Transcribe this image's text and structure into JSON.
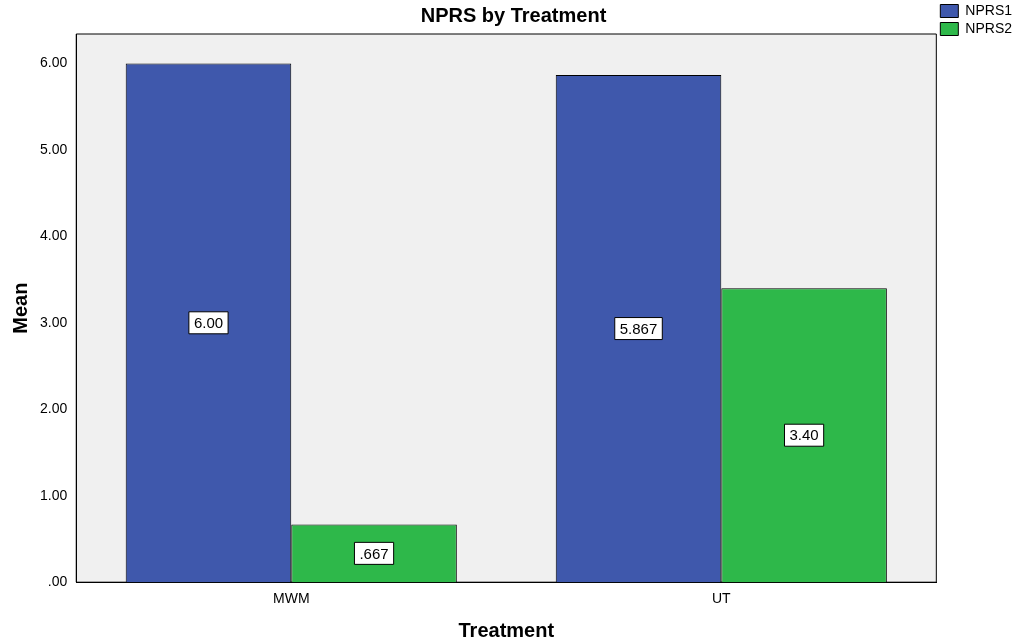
{
  "chart_data": {
    "type": "bar",
    "title": "NPRS by Treatment",
    "xlabel": "Treatment",
    "ylabel": "Mean",
    "categories": [
      "MWM",
      "UT"
    ],
    "series": [
      {
        "name": "NPRS1",
        "color": "#3f58ac",
        "values": [
          6.0,
          5.867
        ],
        "value_labels": [
          "6.00",
          "5.867"
        ]
      },
      {
        "name": "NPRS2",
        "color": "#2eb84a",
        "values": [
          0.667,
          3.4
        ],
        "value_labels": [
          ".667",
          "3.40"
        ]
      }
    ],
    "ylim": [
      0,
      6.34
    ],
    "yticks": [
      {
        "value": 0,
        "label": ".00"
      },
      {
        "value": 1,
        "label": "1.00"
      },
      {
        "value": 2,
        "label": "2.00"
      },
      {
        "value": 3,
        "label": "3.00"
      },
      {
        "value": 4,
        "label": "4.00"
      },
      {
        "value": 5,
        "label": "5.00"
      },
      {
        "value": 6,
        "label": "6.00"
      }
    ],
    "grid": false,
    "legend": "top right"
  }
}
